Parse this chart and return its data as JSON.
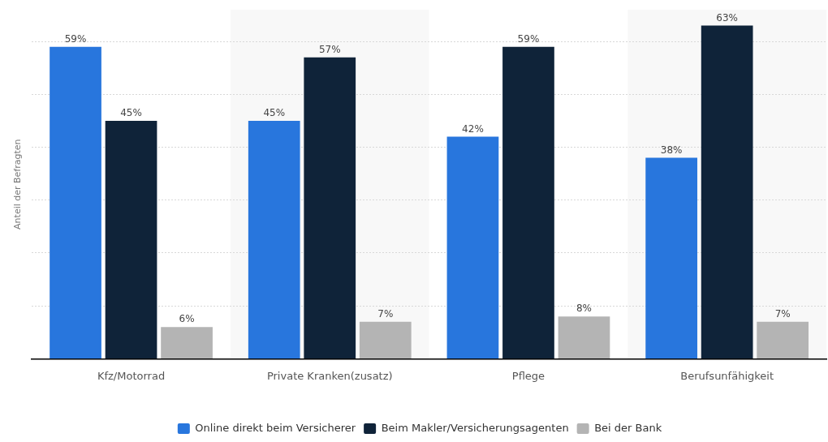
{
  "chart_data": {
    "type": "bar",
    "ylabel": "Anteil der Befragten",
    "categories": [
      "Kfz/Motorrad",
      "Private Kranken(zusatz)",
      "Pflege",
      "Berufsunfähigkeit"
    ],
    "series": [
      {
        "name": "Online direkt beim Versicherer",
        "color": "#2876dd",
        "values": [
          59,
          45,
          42,
          38
        ],
        "value_labels": [
          "59%",
          "45%",
          "42%",
          "38%"
        ]
      },
      {
        "name": "Beim Makler/Versicherungsagenten",
        "color": "#0f2339",
        "values": [
          45,
          57,
          59,
          63
        ],
        "value_labels": [
          "45%",
          "57%",
          "59%",
          "63%"
        ]
      },
      {
        "name": "Bei der Bank",
        "color": "#b4b4b4",
        "values": [
          6,
          7,
          8,
          7
        ],
        "value_labels": [
          "6%",
          "7%",
          "8%",
          "7%"
        ]
      }
    ],
    "ylim": [
      0,
      66
    ],
    "yticks": [
      {
        "value": 0,
        "label": null
      },
      {
        "value": 10,
        "label": null
      },
      {
        "value": 20,
        "label": null
      },
      {
        "value": 30,
        "label": null
      },
      {
        "value": 40,
        "label": null
      },
      {
        "value": 50,
        "label": null
      },
      {
        "value": 60,
        "label": null
      }
    ],
    "grid": "y",
    "tick_labels": "x",
    "legend": "bottom",
    "bands": [
      {
        "axis": "x",
        "from": "Private Kranken(zusatz)",
        "to": "Private Kranken(zusatz)",
        "color": "#f8f8f8"
      },
      {
        "axis": "x",
        "from": "Berufsunfähigkeit",
        "to": "Berufsunfähigkeit",
        "color": "#f8f8f8"
      }
    ]
  }
}
